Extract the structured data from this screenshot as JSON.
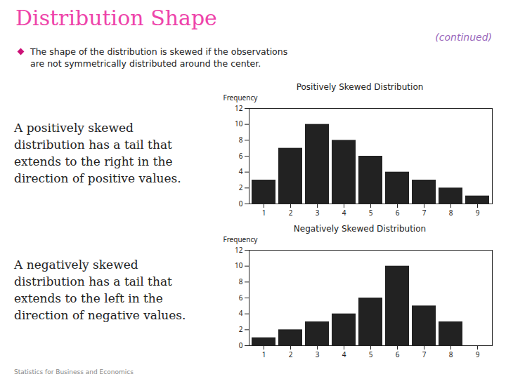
{
  "title": "Distribution Shape",
  "subtitle": "(continued)",
  "annotations": [
    [
      "The shape of the distribution is skewed if the observations",
      "are not symmetrically distributed around the center."
    ],
    [
      "A positively skewed",
      "distribution has a tail that",
      "extends to the right in the",
      "direction of positive values."
    ],
    [
      "A negatively skewed",
      "distribution has a tail that",
      "extends to the left in the",
      "direction of negative values."
    ],
    [
      "Statistics for Business and Economics"
    ]
  ],
  "chart_data": [
    {
      "type": "bar",
      "title": "Positively Skewed Distribution",
      "categories": [
        "1",
        "2",
        "3",
        "4",
        "5",
        "6",
        "7",
        "8",
        "9"
      ],
      "values": [
        3,
        7,
        10,
        8,
        6,
        4,
        3,
        2,
        1
      ],
      "ylabel": "Frequency",
      "ylim": [
        0,
        12
      ],
      "yticks": [
        0,
        2,
        4,
        6,
        8,
        10,
        12
      ],
      "grid": false
    },
    {
      "type": "bar",
      "title": "Negatively Skewed Distribution",
      "categories": [
        "1",
        "2",
        "3",
        "4",
        "5",
        "6",
        "7",
        "8",
        "9"
      ],
      "values": [
        1,
        2,
        3,
        4,
        6,
        10,
        5,
        3,
        null
      ],
      "ylabel": "Frequency",
      "ylim": [
        0,
        12
      ],
      "yticks": [
        0,
        2,
        4,
        6,
        8,
        10,
        12
      ],
      "grid": false
    }
  ]
}
